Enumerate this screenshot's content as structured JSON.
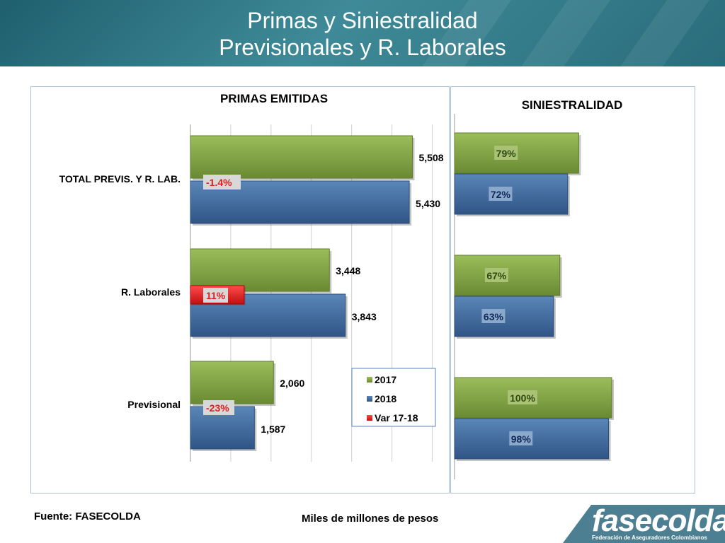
{
  "header": {
    "title_line1": "Primas  y Siniestralidad",
    "title_line2": "Previsionales  y R. Laborales"
  },
  "footer": {
    "source": "Fuente: FASECOLDA",
    "units": "Miles de millones de pesos"
  },
  "logo": {
    "name": "fasecolda",
    "tagline": "Federación de Aseguradores Colombianos"
  },
  "colors": {
    "series_2017": "#7a9c40",
    "series_2018": "#3d689c",
    "series_var": "#e02020",
    "header_bg": "#2a6c7b",
    "border": "#a8c4d4"
  },
  "chart_data": [
    {
      "type": "bar",
      "orientation": "horizontal",
      "title": "PRIMAS EMITIDAS",
      "categories": [
        "TOTAL  PREVIS. Y R. LAB.",
        "R. Laborales",
        "Previsional"
      ],
      "series": [
        {
          "name": "2017",
          "values": [
            5508,
            3448,
            2060
          ],
          "labels": [
            "5,508",
            "3,448",
            "2,060"
          ]
        },
        {
          "name": "2018",
          "values": [
            5430,
            3843,
            1587
          ],
          "labels": [
            "5,430",
            "3,843",
            "1,587"
          ]
        },
        {
          "name": "Var 17-18",
          "values": [
            -1.4,
            11,
            -23
          ],
          "labels": [
            "-1.4%",
            "11%",
            "-23%"
          ]
        }
      ],
      "xlim": [
        0,
        6000
      ],
      "grid": true,
      "legend": "bottom-right"
    },
    {
      "type": "bar",
      "orientation": "horizontal",
      "title": "SINIESTRALIDAD",
      "categories": [
        "TOTAL  PREVIS. Y R. LAB.",
        "R. Laborales",
        "Previsional"
      ],
      "series": [
        {
          "name": "2017",
          "values": [
            79,
            67,
            100
          ],
          "labels": [
            "79%",
            "67%",
            "100%"
          ]
        },
        {
          "name": "2018",
          "values": [
            72,
            63,
            98
          ],
          "labels": [
            "72%",
            "63%",
            "98%"
          ]
        }
      ],
      "xlim": [
        0,
        100
      ]
    }
  ]
}
